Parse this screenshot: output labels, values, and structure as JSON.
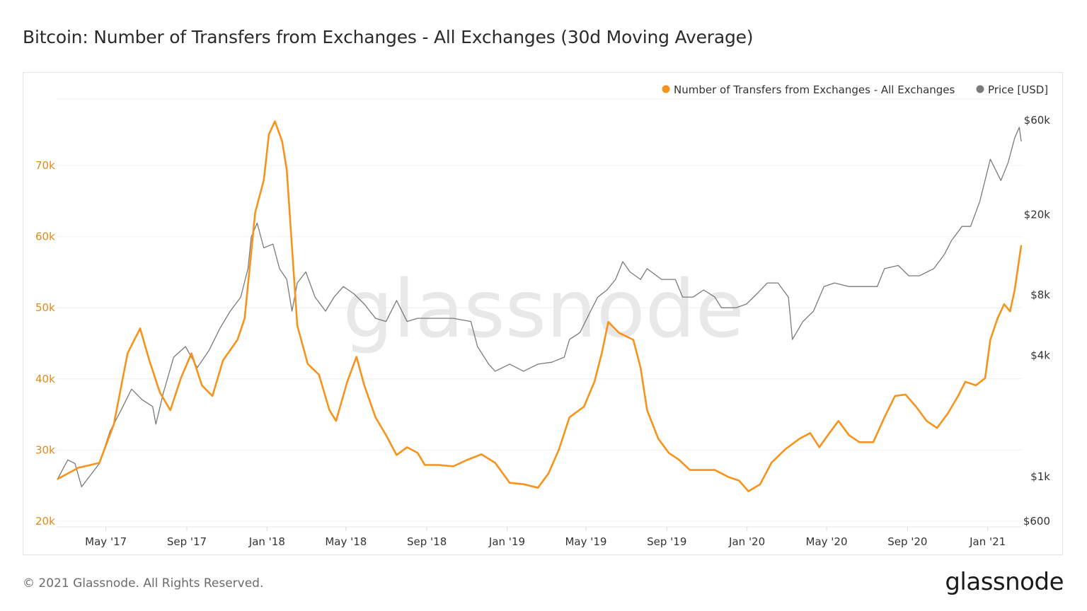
{
  "title": "Bitcoin: Number of Transfers from Exchanges - All Exchanges (30d Moving Average)",
  "footer": "© 2021 Glassnode. All Rights Reserved.",
  "logo_text": "glassnode",
  "watermark": "glassnode",
  "chart_data": {
    "type": "line",
    "title": "Bitcoin: Number of Transfers from Exchanges - All Exchanges (30d Moving Average)",
    "legend_position": "top-right",
    "grid": true,
    "x_range": [
      "2017-02-15",
      "2021-02-22"
    ],
    "x_ticks": [
      {
        "date": "2017-05-01",
        "label": "May '17"
      },
      {
        "date": "2017-09-01",
        "label": "Sep '17"
      },
      {
        "date": "2018-01-01",
        "label": "Jan '18"
      },
      {
        "date": "2018-05-01",
        "label": "May '18"
      },
      {
        "date": "2018-09-01",
        "label": "Sep '18"
      },
      {
        "date": "2019-01-01",
        "label": "Jan '19"
      },
      {
        "date": "2019-05-01",
        "label": "May '19"
      },
      {
        "date": "2019-09-01",
        "label": "Sep '19"
      },
      {
        "date": "2020-01-01",
        "label": "Jan '20"
      },
      {
        "date": "2020-05-01",
        "label": "May '20"
      },
      {
        "date": "2020-09-01",
        "label": "Sep '20"
      },
      {
        "date": "2021-01-01",
        "label": "Jan '21"
      }
    ],
    "left_axis": {
      "scale": "linear",
      "ylim": [
        20000,
        80000
      ],
      "ticks": [
        {
          "v": 20000,
          "label": "20k"
        },
        {
          "v": 30000,
          "label": "30k"
        },
        {
          "v": 40000,
          "label": "40k"
        },
        {
          "v": 50000,
          "label": "50k"
        },
        {
          "v": 60000,
          "label": "60k"
        },
        {
          "v": 70000,
          "label": "70k"
        }
      ],
      "color": "#f7931a"
    },
    "right_axis": {
      "scale": "log",
      "ylim": [
        600,
        60000
      ],
      "ticks": [
        {
          "v": 600,
          "label": "$600"
        },
        {
          "v": 1000,
          "label": "$1k"
        },
        {
          "v": 4000,
          "label": "$4k"
        },
        {
          "v": 8000,
          "label": "$8k"
        },
        {
          "v": 20000,
          "label": "$20k"
        },
        {
          "v": 60000,
          "label": "$60k"
        }
      ]
    },
    "series": [
      {
        "name": "Number of Transfers from Exchanges - All Exchanges",
        "axis": "left",
        "color": "#f7931a",
        "points": [
          [
            "2017-02-16",
            25900
          ],
          [
            "2017-03-20",
            27500
          ],
          [
            "2017-04-21",
            28200
          ],
          [
            "2017-05-13",
            33600
          ],
          [
            "2017-06-03",
            43600
          ],
          [
            "2017-06-22",
            47100
          ],
          [
            "2017-07-06",
            42600
          ],
          [
            "2017-07-22",
            38100
          ],
          [
            "2017-08-07",
            35600
          ],
          [
            "2017-08-23",
            40100
          ],
          [
            "2017-09-08",
            43600
          ],
          [
            "2017-09-24",
            39100
          ],
          [
            "2017-10-10",
            37600
          ],
          [
            "2017-10-26",
            42600
          ],
          [
            "2017-11-17",
            45500
          ],
          [
            "2017-11-28",
            48500
          ],
          [
            "2017-12-14",
            63400
          ],
          [
            "2017-12-27",
            67900
          ],
          [
            "2018-01-04",
            74400
          ],
          [
            "2018-01-13",
            76200
          ],
          [
            "2018-01-24",
            73400
          ],
          [
            "2018-01-31",
            69400
          ],
          [
            "2018-02-08",
            58500
          ],
          [
            "2018-02-16",
            47500
          ],
          [
            "2018-03-04",
            42100
          ],
          [
            "2018-03-21",
            40600
          ],
          [
            "2018-04-06",
            35600
          ],
          [
            "2018-04-16",
            34100
          ],
          [
            "2018-05-03",
            39600
          ],
          [
            "2018-05-17",
            43100
          ],
          [
            "2018-05-29",
            39100
          ],
          [
            "2018-06-15",
            34600
          ],
          [
            "2018-07-01",
            32100
          ],
          [
            "2018-07-17",
            29300
          ],
          [
            "2018-08-02",
            30400
          ],
          [
            "2018-08-18",
            29600
          ],
          [
            "2018-08-29",
            27900
          ],
          [
            "2018-09-19",
            27900
          ],
          [
            "2018-10-11",
            27700
          ],
          [
            "2018-11-01",
            28600
          ],
          [
            "2018-11-23",
            29400
          ],
          [
            "2018-12-14",
            28200
          ],
          [
            "2019-01-05",
            25400
          ],
          [
            "2019-01-26",
            25200
          ],
          [
            "2019-02-17",
            24700
          ],
          [
            "2019-03-05",
            26700
          ],
          [
            "2019-03-21",
            30100
          ],
          [
            "2019-04-06",
            34600
          ],
          [
            "2019-04-28",
            36100
          ],
          [
            "2019-05-14",
            39600
          ],
          [
            "2019-05-25",
            43600
          ],
          [
            "2019-06-04",
            48000
          ],
          [
            "2019-06-20",
            46500
          ],
          [
            "2019-07-12",
            45500
          ],
          [
            "2019-07-23",
            41600
          ],
          [
            "2019-08-02",
            35600
          ],
          [
            "2019-08-19",
            31600
          ],
          [
            "2019-09-04",
            29600
          ],
          [
            "2019-09-20",
            28600
          ],
          [
            "2019-10-06",
            27200
          ],
          [
            "2019-10-27",
            27200
          ],
          [
            "2019-11-13",
            27200
          ],
          [
            "2019-12-04",
            26200
          ],
          [
            "2019-12-20",
            25700
          ],
          [
            "2020-01-03",
            24200
          ],
          [
            "2020-01-21",
            25200
          ],
          [
            "2020-02-07",
            28200
          ],
          [
            "2020-02-28",
            30100
          ],
          [
            "2020-03-21",
            31600
          ],
          [
            "2020-04-06",
            32400
          ],
          [
            "2020-04-20",
            30400
          ],
          [
            "2020-05-03",
            32100
          ],
          [
            "2020-05-19",
            34100
          ],
          [
            "2020-06-04",
            32100
          ],
          [
            "2020-06-20",
            31100
          ],
          [
            "2020-07-11",
            31100
          ],
          [
            "2020-07-28",
            34600
          ],
          [
            "2020-08-13",
            37600
          ],
          [
            "2020-08-29",
            37800
          ],
          [
            "2020-09-14",
            36100
          ],
          [
            "2020-09-30",
            34100
          ],
          [
            "2020-10-16",
            33100
          ],
          [
            "2020-11-01",
            35100
          ],
          [
            "2020-11-17",
            37600
          ],
          [
            "2020-11-28",
            39600
          ],
          [
            "2020-12-14",
            39100
          ],
          [
            "2020-12-28",
            40100
          ],
          [
            "2021-01-05",
            45500
          ],
          [
            "2021-01-16",
            48500
          ],
          [
            "2021-01-26",
            50500
          ],
          [
            "2021-02-04",
            49500
          ],
          [
            "2021-02-11",
            52500
          ],
          [
            "2021-02-21",
            58800
          ]
        ]
      },
      {
        "name": "Price [USD]",
        "axis": "right",
        "color": "#7a7a7a",
        "points": [
          [
            "2017-02-16",
            966
          ],
          [
            "2017-03-04",
            1210
          ],
          [
            "2017-03-15",
            1160
          ],
          [
            "2017-03-25",
            890
          ],
          [
            "2017-04-21",
            1160
          ],
          [
            "2017-05-07",
            1675
          ],
          [
            "2017-05-24",
            2140
          ],
          [
            "2017-06-09",
            2720
          ],
          [
            "2017-06-25",
            2410
          ],
          [
            "2017-07-11",
            2230
          ],
          [
            "2017-07-16",
            1820
          ],
          [
            "2017-07-27",
            2580
          ],
          [
            "2017-08-12",
            3920
          ],
          [
            "2017-08-30",
            4430
          ],
          [
            "2017-09-17",
            3480
          ],
          [
            "2017-10-05",
            4250
          ],
          [
            "2017-10-21",
            5420
          ],
          [
            "2017-11-06",
            6640
          ],
          [
            "2017-11-22",
            7800
          ],
          [
            "2017-12-03",
            10800
          ],
          [
            "2017-12-08",
            15500
          ],
          [
            "2017-12-17",
            18200
          ],
          [
            "2017-12-27",
            13700
          ],
          [
            "2018-01-10",
            14300
          ],
          [
            "2018-01-20",
            10800
          ],
          [
            "2018-01-31",
            9550
          ],
          [
            "2018-02-08",
            6640
          ],
          [
            "2018-02-16",
            9170
          ],
          [
            "2018-03-01",
            10400
          ],
          [
            "2018-03-15",
            7800
          ],
          [
            "2018-03-31",
            6640
          ],
          [
            "2018-04-13",
            7800
          ],
          [
            "2018-04-27",
            8800
          ],
          [
            "2018-05-13",
            8100
          ],
          [
            "2018-05-29",
            7200
          ],
          [
            "2018-06-15",
            6120
          ],
          [
            "2018-07-01",
            5900
          ],
          [
            "2018-07-17",
            7500
          ],
          [
            "2018-08-02",
            5900
          ],
          [
            "2018-08-18",
            6120
          ],
          [
            "2018-09-09",
            6120
          ],
          [
            "2018-10-11",
            6120
          ],
          [
            "2018-11-07",
            5900
          ],
          [
            "2018-11-17",
            4430
          ],
          [
            "2018-12-04",
            3620
          ],
          [
            "2018-12-14",
            3340
          ],
          [
            "2019-01-05",
            3620
          ],
          [
            "2019-01-26",
            3340
          ],
          [
            "2019-02-17",
            3620
          ],
          [
            "2019-03-10",
            3700
          ],
          [
            "2019-03-29",
            3920
          ],
          [
            "2019-04-06",
            4800
          ],
          [
            "2019-04-22",
            5200
          ],
          [
            "2019-05-08",
            6640
          ],
          [
            "2019-05-19",
            7800
          ],
          [
            "2019-06-02",
            8460
          ],
          [
            "2019-06-15",
            9550
          ],
          [
            "2019-06-26",
            11700
          ],
          [
            "2019-07-07",
            10400
          ],
          [
            "2019-07-23",
            9550
          ],
          [
            "2019-08-02",
            10800
          ],
          [
            "2019-08-24",
            9550
          ],
          [
            "2019-09-14",
            9550
          ],
          [
            "2019-09-25",
            7800
          ],
          [
            "2019-10-11",
            7800
          ],
          [
            "2019-10-27",
            8460
          ],
          [
            "2019-11-13",
            7800
          ],
          [
            "2019-11-23",
            6900
          ],
          [
            "2019-12-15",
            6900
          ],
          [
            "2019-12-31",
            7200
          ],
          [
            "2020-01-16",
            8100
          ],
          [
            "2020-02-01",
            9170
          ],
          [
            "2020-02-17",
            9170
          ],
          [
            "2020-03-04",
            7800
          ],
          [
            "2020-03-10",
            4800
          ],
          [
            "2020-03-26",
            5900
          ],
          [
            "2020-04-11",
            6640
          ],
          [
            "2020-04-27",
            8800
          ],
          [
            "2020-05-13",
            9170
          ],
          [
            "2020-06-04",
            8800
          ],
          [
            "2020-06-25",
            8800
          ],
          [
            "2020-07-17",
            8800
          ],
          [
            "2020-07-28",
            10800
          ],
          [
            "2020-08-18",
            11200
          ],
          [
            "2020-09-03",
            9950
          ],
          [
            "2020-09-19",
            9950
          ],
          [
            "2020-10-11",
            10800
          ],
          [
            "2020-10-27",
            12700
          ],
          [
            "2020-11-07",
            14900
          ],
          [
            "2020-11-23",
            17500
          ],
          [
            "2020-12-06",
            17500
          ],
          [
            "2020-12-20",
            23300
          ],
          [
            "2021-01-05",
            37800
          ],
          [
            "2021-01-21",
            29600
          ],
          [
            "2021-02-01",
            36300
          ],
          [
            "2021-02-11",
            48200
          ],
          [
            "2021-02-18",
            54400
          ],
          [
            "2021-02-21",
            46300
          ]
        ]
      }
    ]
  }
}
